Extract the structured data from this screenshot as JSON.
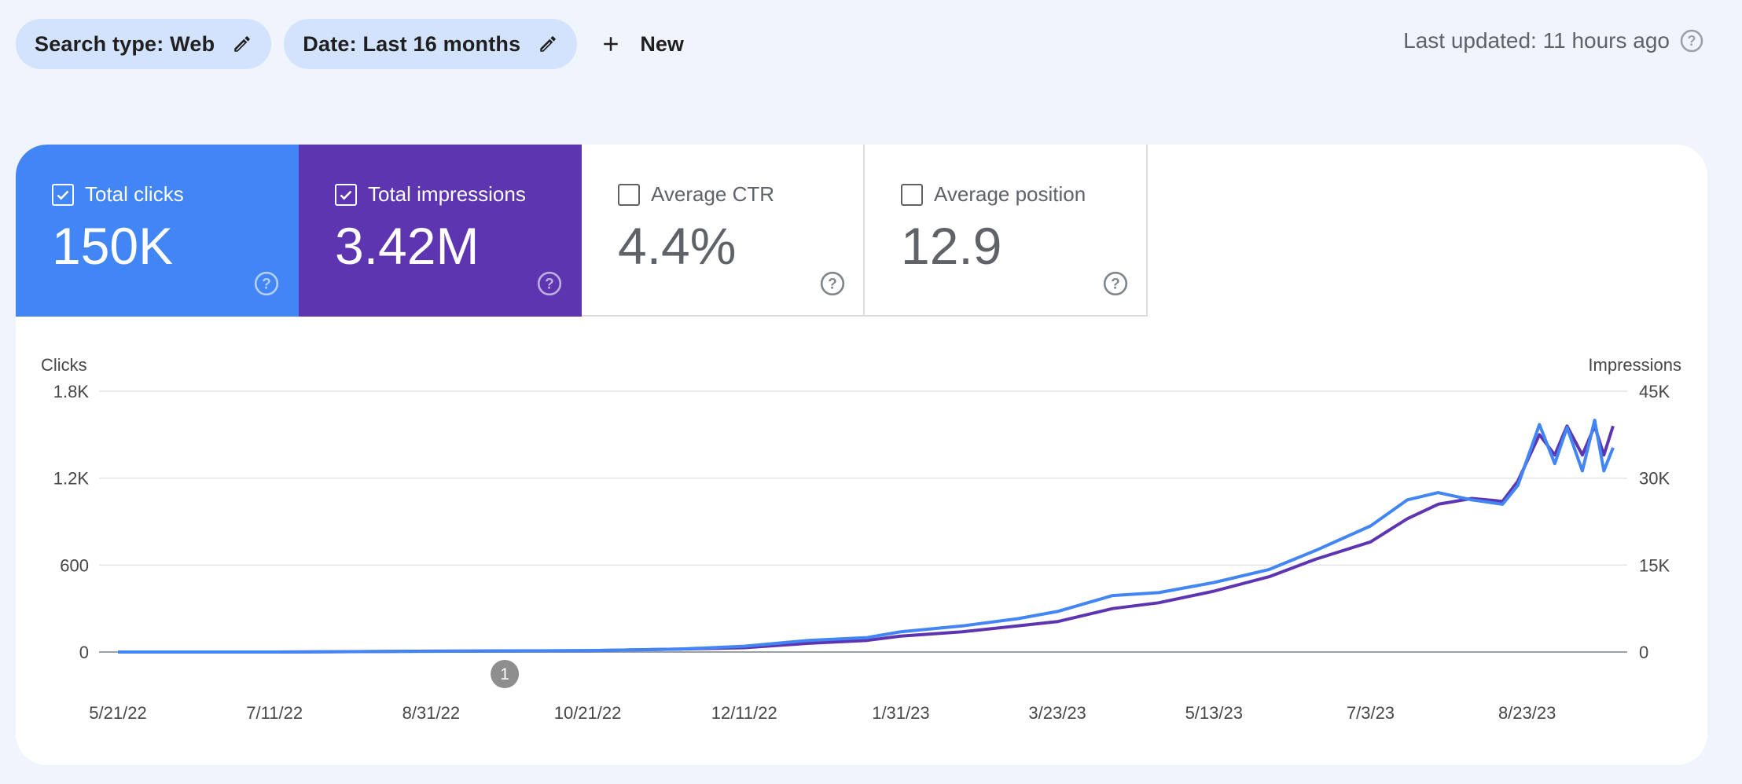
{
  "filters": {
    "search_type": "Search type: Web",
    "date": "Date: Last 16 months",
    "new_label": "New"
  },
  "last_updated": "Last updated: 11 hours ago",
  "metrics": [
    {
      "label": "Total clicks",
      "value": "150K",
      "checked": true,
      "color": "#4285f4"
    },
    {
      "label": "Total impressions",
      "value": "3.42M",
      "checked": true,
      "color": "#5e35b1"
    },
    {
      "label": "Average CTR",
      "value": "4.4%",
      "checked": false
    },
    {
      "label": "Average position",
      "value": "12.9",
      "checked": false
    }
  ],
  "annotation": {
    "label": "1",
    "date": "9/24/22"
  },
  "chart_data": {
    "type": "line",
    "ylabel_left": "Clicks",
    "ylabel_right": "Impressions",
    "yticks_left": [
      "1.8K",
      "1.2K",
      "600",
      "0"
    ],
    "yticks_right": [
      "45K",
      "30K",
      "15K",
      "0"
    ],
    "ylim_left": [
      0,
      1800
    ],
    "ylim_right": [
      0,
      45000
    ],
    "x_ticks": [
      "5/21/22",
      "7/11/22",
      "8/31/22",
      "10/21/22",
      "12/11/22",
      "1/31/23",
      "3/23/23",
      "5/13/23",
      "7/3/23",
      "8/23/23"
    ],
    "x_start": "5/21/22",
    "x_end": "9/20/23",
    "grid": true,
    "series": [
      {
        "name": "Clicks",
        "color": "#4285f4",
        "axis": "left",
        "points": [
          [
            "5/21/22",
            0
          ],
          [
            "7/11/22",
            0
          ],
          [
            "8/31/22",
            5
          ],
          [
            "10/21/22",
            10
          ],
          [
            "11/20/22",
            20
          ],
          [
            "12/11/22",
            40
          ],
          [
            "1/1/23",
            80
          ],
          [
            "1/20/23",
            100
          ],
          [
            "1/31/23",
            140
          ],
          [
            "2/20/23",
            180
          ],
          [
            "3/10/23",
            230
          ],
          [
            "3/23/23",
            280
          ],
          [
            "4/10/23",
            390
          ],
          [
            "4/25/23",
            410
          ],
          [
            "5/13/23",
            480
          ],
          [
            "5/31/23",
            570
          ],
          [
            "6/15/23",
            700
          ],
          [
            "7/3/23",
            870
          ],
          [
            "7/15/23",
            1050
          ],
          [
            "7/25/23",
            1100
          ],
          [
            "8/5/23",
            1050
          ],
          [
            "8/15/23",
            1020
          ],
          [
            "8/20/23",
            1150
          ],
          [
            "8/27/23",
            1570
          ],
          [
            "9/1/23",
            1300
          ],
          [
            "9/5/23",
            1550
          ],
          [
            "9/10/23",
            1250
          ],
          [
            "9/14/23",
            1600
          ],
          [
            "9/17/23",
            1250
          ],
          [
            "9/20/23",
            1410
          ]
        ]
      },
      {
        "name": "Impressions",
        "color": "#5e35b1",
        "axis": "right",
        "points": [
          [
            "5/21/22",
            0
          ],
          [
            "7/11/22",
            0
          ],
          [
            "8/31/22",
            150
          ],
          [
            "10/21/22",
            250
          ],
          [
            "11/20/22",
            500
          ],
          [
            "12/11/22",
            750
          ],
          [
            "1/1/23",
            1500
          ],
          [
            "1/20/23",
            2000
          ],
          [
            "1/31/23",
            2750
          ],
          [
            "2/20/23",
            3500
          ],
          [
            "3/10/23",
            4500
          ],
          [
            "3/23/23",
            5250
          ],
          [
            "4/10/23",
            7500
          ],
          [
            "4/25/23",
            8500
          ],
          [
            "5/13/23",
            10500
          ],
          [
            "5/31/23",
            13000
          ],
          [
            "6/15/23",
            16000
          ],
          [
            "7/3/23",
            19000
          ],
          [
            "7/15/23",
            23000
          ],
          [
            "7/25/23",
            25500
          ],
          [
            "8/5/23",
            26500
          ],
          [
            "8/15/23",
            26000
          ],
          [
            "8/20/23",
            29500
          ],
          [
            "8/27/23",
            37500
          ],
          [
            "9/1/23",
            34000
          ],
          [
            "9/5/23",
            39000
          ],
          [
            "9/10/23",
            34000
          ],
          [
            "9/14/23",
            39000
          ],
          [
            "9/17/23",
            34000
          ],
          [
            "9/20/23",
            39000
          ]
        ]
      }
    ]
  }
}
